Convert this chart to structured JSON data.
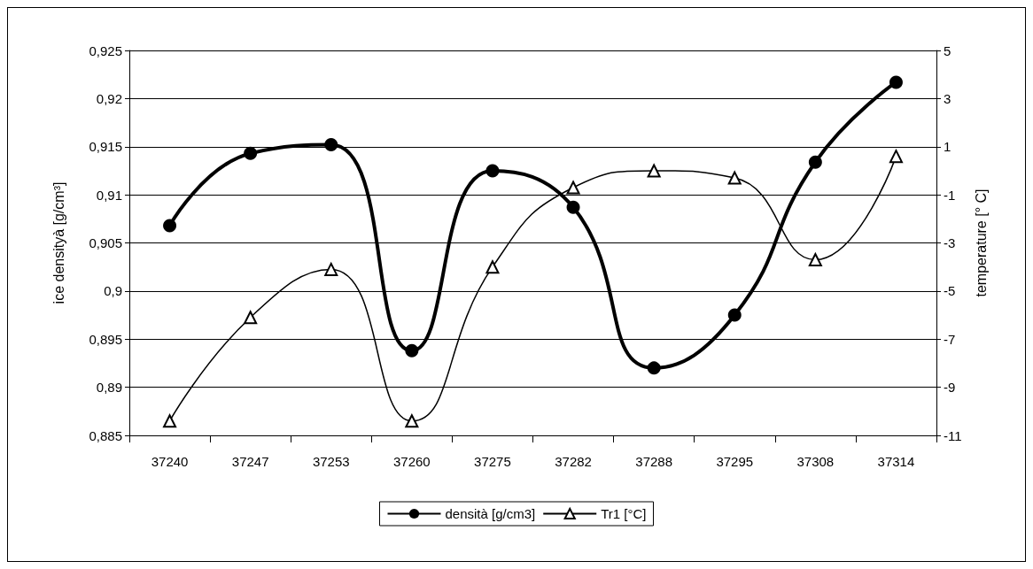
{
  "chart_data": {
    "type": "line",
    "ylabel": "ice densityà [g/cm³]",
    "y2label": "temperature [° C]",
    "categories": [
      "37240",
      "37247",
      "37253",
      "37260",
      "37275",
      "37282",
      "37288",
      "37295",
      "37308",
      "37314"
    ],
    "series": [
      {
        "name": "densità [g/cm3]",
        "color": "#000000",
        "marker": "circle",
        "values": [
          0.9068,
          0.9143,
          0.9152,
          0.8938,
          0.9125,
          0.9087,
          0.892,
          0.8975,
          0.9134,
          0.9217
        ]
      },
      {
        "name": "Tr1 [°C]",
        "color": "#000000",
        "marker": "triangle",
        "axis": "y2",
        "values": [
          -10.4,
          -6.1,
          -4.1,
          -10.4,
          -4.0,
          -0.7,
          0.0,
          -0.3,
          -3.7,
          0.6
        ]
      }
    ],
    "ylim": [
      0.885,
      0.925
    ],
    "yticks": [
      {
        "value": 0.885,
        "label": "0,885"
      },
      {
        "value": 0.89,
        "label": "0,89"
      },
      {
        "value": 0.895,
        "label": "0,895"
      },
      {
        "value": 0.9,
        "label": "0,9"
      },
      {
        "value": 0.905,
        "label": "0,905"
      },
      {
        "value": 0.91,
        "label": "0,91"
      },
      {
        "value": 0.915,
        "label": "0,915"
      },
      {
        "value": 0.92,
        "label": "0,92"
      },
      {
        "value": 0.925,
        "label": "0,925"
      }
    ],
    "y2lim": [
      -11,
      5
    ],
    "y2ticks": [
      -11,
      -9,
      -7,
      -5,
      -3,
      -1,
      1,
      3,
      5
    ],
    "grid": "y",
    "legend": "bottom",
    "line_style": "solid"
  }
}
